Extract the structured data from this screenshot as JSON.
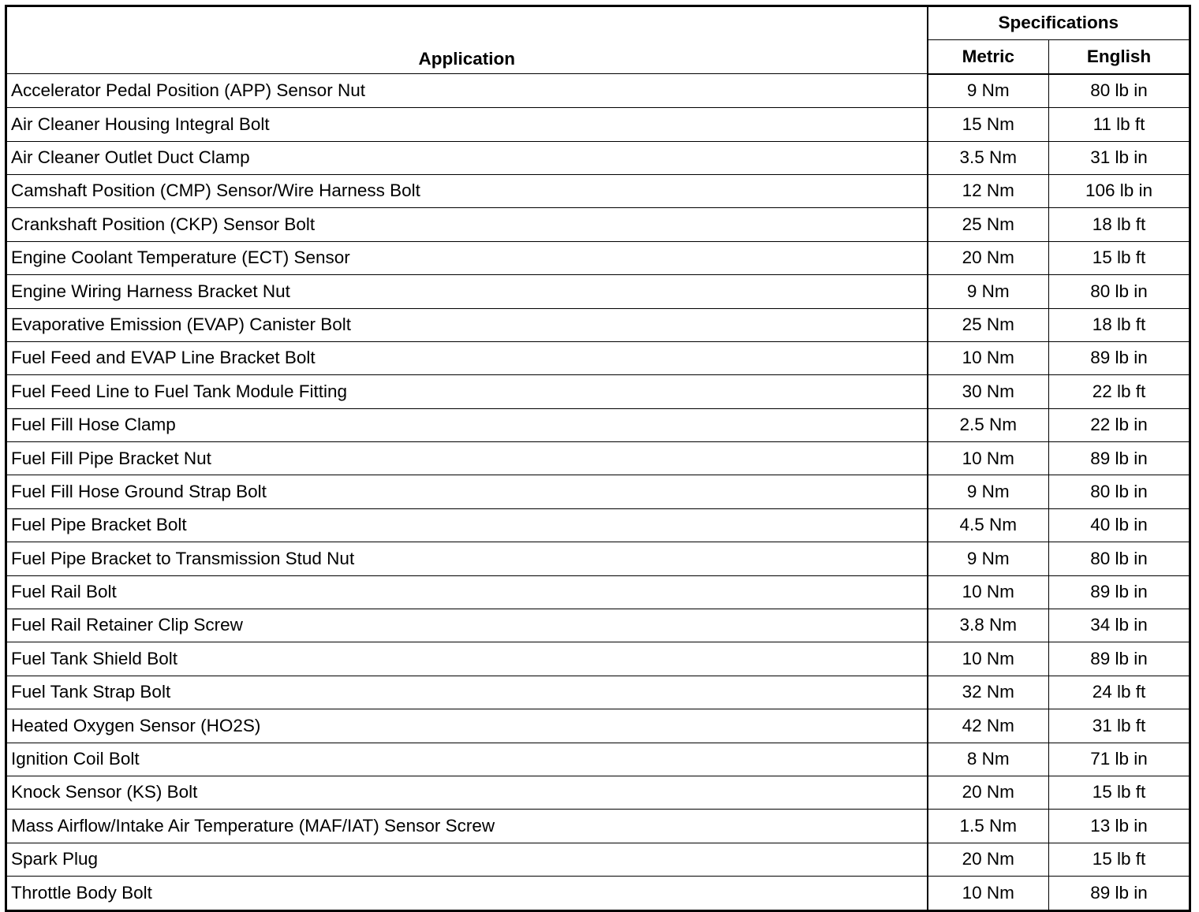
{
  "header": {
    "application": "Application",
    "specifications": "Specifications",
    "metric": "Metric",
    "english": "English"
  },
  "rows": [
    {
      "application": "Accelerator Pedal Position (APP) Sensor Nut",
      "metric": "9 Nm",
      "english": "80 lb in"
    },
    {
      "application": "Air Cleaner Housing Integral Bolt",
      "metric": "15 Nm",
      "english": "11 lb ft"
    },
    {
      "application": "Air Cleaner Outlet Duct Clamp",
      "metric": "3.5 Nm",
      "english": "31 lb in"
    },
    {
      "application": "Camshaft Position (CMP) Sensor/Wire Harness Bolt",
      "metric": "12 Nm",
      "english": "106 lb in"
    },
    {
      "application": "Crankshaft Position (CKP) Sensor Bolt",
      "metric": "25 Nm",
      "english": "18 lb ft"
    },
    {
      "application": "Engine Coolant Temperature (ECT) Sensor",
      "metric": "20 Nm",
      "english": "15 lb ft"
    },
    {
      "application": "Engine Wiring Harness Bracket Nut",
      "metric": "9 Nm",
      "english": "80 lb in"
    },
    {
      "application": "Evaporative Emission (EVAP) Canister Bolt",
      "metric": "25 Nm",
      "english": "18 lb ft"
    },
    {
      "application": "Fuel Feed and EVAP Line Bracket Bolt",
      "metric": "10 Nm",
      "english": "89 lb in"
    },
    {
      "application": "Fuel Feed Line to Fuel Tank Module Fitting",
      "metric": "30 Nm",
      "english": "22 lb ft"
    },
    {
      "application": "Fuel Fill Hose Clamp",
      "metric": "2.5 Nm",
      "english": "22 lb in"
    },
    {
      "application": "Fuel Fill Pipe Bracket Nut",
      "metric": "10 Nm",
      "english": "89 lb in"
    },
    {
      "application": "Fuel Fill Hose Ground Strap Bolt",
      "metric": "9 Nm",
      "english": "80 lb in"
    },
    {
      "application": "Fuel Pipe Bracket Bolt",
      "metric": "4.5 Nm",
      "english": "40 lb in"
    },
    {
      "application": "Fuel Pipe Bracket to Transmission Stud Nut",
      "metric": "9 Nm",
      "english": "80 lb in"
    },
    {
      "application": "Fuel Rail Bolt",
      "metric": "10 Nm",
      "english": "89 lb in"
    },
    {
      "application": "Fuel Rail Retainer Clip Screw",
      "metric": "3.8 Nm",
      "english": "34 lb in"
    },
    {
      "application": "Fuel Tank Shield Bolt",
      "metric": "10 Nm",
      "english": "89 lb in"
    },
    {
      "application": "Fuel Tank Strap Bolt",
      "metric": "32 Nm",
      "english": "24 lb ft"
    },
    {
      "application": "Heated Oxygen Sensor (HO2S)",
      "metric": "42 Nm",
      "english": "31 lb ft"
    },
    {
      "application": "Ignition Coil Bolt",
      "metric": "8 Nm",
      "english": "71 lb in"
    },
    {
      "application": "Knock Sensor (KS) Bolt",
      "metric": "20 Nm",
      "english": "15 lb ft"
    },
    {
      "application": "Mass Airflow/Intake Air Temperature (MAF/IAT) Sensor Screw",
      "metric": "1.5 Nm",
      "english": "13 lb in"
    },
    {
      "application": "Spark Plug",
      "metric": "20 Nm",
      "english": "15 lb ft"
    },
    {
      "application": "Throttle Body Bolt",
      "metric": "10 Nm",
      "english": "89 lb in"
    }
  ]
}
